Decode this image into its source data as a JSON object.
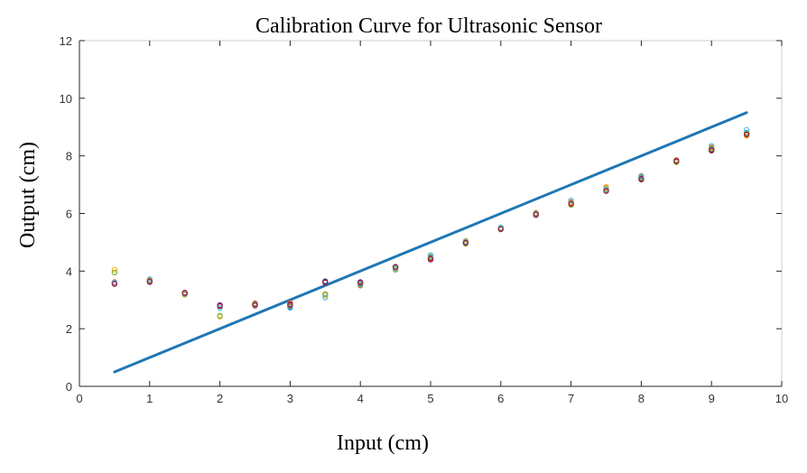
{
  "chart_data": {
    "type": "scatter",
    "title": "Calibration Curve for Ultrasonic Sensor",
    "xlabel": "Input (cm)",
    "ylabel": "Output (cm)",
    "xlim": [
      0,
      10
    ],
    "ylim": [
      0,
      12
    ],
    "xticks": [
      0,
      1,
      2,
      3,
      4,
      5,
      6,
      7,
      8,
      9,
      10
    ],
    "yticks": [
      0,
      2,
      4,
      6,
      8,
      10,
      12
    ],
    "grid": false,
    "reference_line": {
      "x": [
        0.5,
        9.5
      ],
      "y": [
        0.5,
        9.5
      ],
      "color": "#1f77b4"
    },
    "series": [
      {
        "color": "#0072bd",
        "x": [
          0.5,
          1,
          1.5,
          2,
          2.5,
          3,
          3.5,
          4,
          4.5,
          5,
          5.5,
          6,
          6.5,
          7,
          7.5,
          8,
          8.5,
          9,
          9.5
        ],
        "y": [
          3.6,
          3.65,
          3.22,
          2.82,
          2.82,
          2.75,
          3.65,
          3.58,
          4.12,
          4.48,
          4.98,
          5.48,
          5.95,
          6.35,
          6.82,
          7.22,
          7.8,
          8.25,
          8.8
        ]
      },
      {
        "color": "#d95319",
        "x": [
          0.5,
          1,
          1.5,
          2,
          2.5,
          3,
          3.5,
          4,
          4.5,
          5,
          5.5,
          6,
          6.5,
          7,
          7.5,
          8,
          8.5,
          9,
          9.5
        ],
        "y": [
          3.62,
          3.7,
          3.25,
          2.8,
          2.88,
          2.9,
          3.2,
          3.5,
          4.1,
          4.45,
          5.0,
          5.5,
          6.02,
          6.4,
          6.9,
          7.3,
          7.85,
          8.3,
          8.72
        ]
      },
      {
        "color": "#edb120",
        "x": [
          0.5,
          1,
          1.5,
          2,
          2.5,
          3,
          3.5,
          4,
          4.5,
          5,
          5.5,
          6,
          6.5,
          7,
          7.5,
          8,
          8.5,
          9,
          9.5
        ],
        "y": [
          4.05,
          3.68,
          3.18,
          2.42,
          2.85,
          2.8,
          3.15,
          3.55,
          4.08,
          4.55,
          5.05,
          5.5,
          5.98,
          6.38,
          6.92,
          7.25,
          7.82,
          8.28,
          8.7
        ]
      },
      {
        "color": "#7e2f8e",
        "x": [
          0.5,
          1,
          1.5,
          2,
          2.5,
          3,
          3.5,
          4,
          4.5,
          5,
          5.5,
          6,
          6.5,
          7,
          7.5,
          8,
          8.5,
          9,
          9.5
        ],
        "y": [
          3.58,
          3.62,
          3.25,
          2.82,
          2.8,
          2.85,
          3.6,
          3.62,
          4.15,
          4.4,
          5.02,
          5.45,
          5.95,
          6.32,
          6.8,
          7.2,
          7.8,
          8.18,
          8.75
        ]
      },
      {
        "color": "#77ac30",
        "x": [
          0.5,
          1,
          1.5,
          2,
          2.5,
          3,
          3.5,
          4,
          4.5,
          5,
          5.5,
          6,
          6.5,
          7,
          7.5,
          8,
          8.5,
          9,
          9.5
        ],
        "y": [
          3.95,
          3.66,
          3.2,
          2.45,
          2.82,
          2.78,
          3.2,
          3.52,
          4.05,
          4.5,
          4.95,
          5.48,
          6.0,
          6.3,
          6.85,
          7.25,
          7.78,
          8.22,
          8.78
        ]
      },
      {
        "color": "#4dbeee",
        "x": [
          0.5,
          1,
          1.5,
          2,
          2.5,
          3,
          3.5,
          4,
          4.5,
          5,
          5.5,
          6,
          6.5,
          7,
          7.5,
          8,
          8.5,
          9,
          9.5
        ],
        "y": [
          3.6,
          3.72,
          3.22,
          2.72,
          2.85,
          2.72,
          3.08,
          3.55,
          4.1,
          4.55,
          5.02,
          5.52,
          5.98,
          6.45,
          6.82,
          7.28,
          7.82,
          8.35,
          8.9
        ]
      },
      {
        "color": "#a2142f",
        "x": [
          0.5,
          1,
          1.5,
          2,
          2.5,
          3,
          3.5,
          4,
          4.5,
          5,
          5.5,
          6,
          6.5,
          7,
          7.5,
          8,
          8.5,
          9,
          9.5
        ],
        "y": [
          3.55,
          3.64,
          3.24,
          2.78,
          2.84,
          2.82,
          3.62,
          3.6,
          4.14,
          4.42,
          4.98,
          5.46,
          5.96,
          6.34,
          6.78,
          7.18,
          7.82,
          8.2,
          8.74
        ]
      }
    ]
  }
}
